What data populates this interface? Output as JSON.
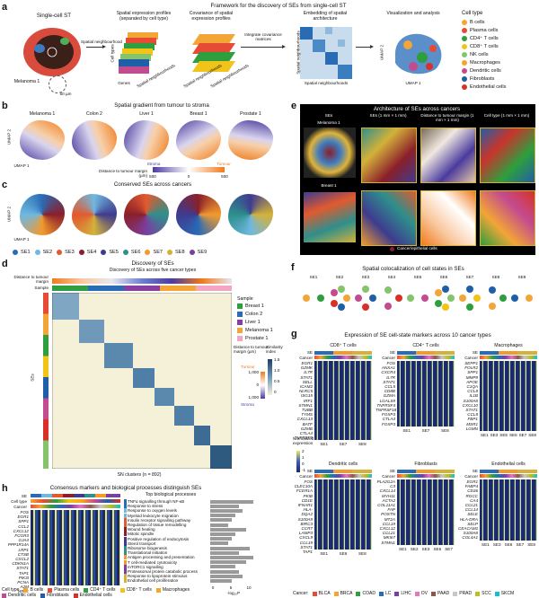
{
  "panel_labels": [
    "a",
    "b",
    "c",
    "d",
    "e",
    "f",
    "g",
    "h"
  ],
  "a": {
    "title": "Framework for the discovery of SEs from single-cell ST",
    "step1_title": "Single-cell ST",
    "sample_label": "Melanoma 1",
    "scale_label": "50 µm",
    "neigh_label": "Spatial neighbourhood",
    "step2_title": "Spatial expression profiles (separated by cell type)",
    "step2_axis_y": "Cell types",
    "step2_axis_x": "Genes",
    "step2_axis_z": "Spatial neighbourhoods",
    "step3_title": "Covariance of spatial expression profiles",
    "step3_axis": "Spatial neighbourhoods",
    "step3_axis_z": "Spatial neighbourhoods",
    "arrow_text": "Integrate covariance matrices",
    "step4_title": "Embedding of spatial architecture",
    "step4_axis_x": "Spatial neighbourhoods",
    "step4_axis_y": "Spatial neighbourhoods",
    "step5_title": "Visualization and analysis",
    "umap1": "UMAP 1",
    "umap2": "UMAP 2",
    "legend_title": "Cell type",
    "legend": [
      {
        "label": "B cells",
        "color": "#f3a536"
      },
      {
        "label": "Plasma cells",
        "color": "#e64b35"
      },
      {
        "label": "CD4⁺ T cells",
        "color": "#2e9e3e"
      },
      {
        "label": "CD8⁺ T cells",
        "color": "#f0c419"
      },
      {
        "label": "NK cells",
        "color": "#85c46c"
      },
      {
        "label": "Macrophages",
        "color": "#f5a623"
      },
      {
        "label": "Dendritic cells",
        "color": "#c34b8f"
      },
      {
        "label": "Fibroblasts",
        "color": "#1f5fa8"
      },
      {
        "label": "Endothelial cells",
        "color": "#d6322a"
      }
    ]
  },
  "b": {
    "title": "Spatial gradient from tumour to stroma",
    "samples": [
      "Melanoma 1",
      "Colon 2",
      "Liver 1",
      "Breast 1",
      "Prostate 1"
    ],
    "umap1": "UMAP 1",
    "umap2": "UMAP 2",
    "cb_label": "Distance to tumour margin (µm)",
    "cb_left": "Stroma",
    "cb_right": "Tumour",
    "cb_ticks": [
      "500",
      "0",
      "500"
    ]
  },
  "c": {
    "title": "Conserved SEs across cancers",
    "umap1": "UMAP 1",
    "umap2": "UMAP 2",
    "se_legend": [
      {
        "label": "SE1",
        "color": "#2a6bb5"
      },
      {
        "label": "SE2",
        "color": "#6fb8e0"
      },
      {
        "label": "SE3",
        "color": "#e25a2e"
      },
      {
        "label": "SE4",
        "color": "#8a1f2a"
      },
      {
        "label": "SE5",
        "color": "#3e3b8f"
      },
      {
        "label": "SE6",
        "color": "#2e8f8c"
      },
      {
        "label": "SE7",
        "color": "#f29a2e"
      },
      {
        "label": "SE8",
        "color": "#d4b13a"
      },
      {
        "label": "SE9",
        "color": "#7a3fa0"
      }
    ]
  },
  "d": {
    "title": "Discovery of SEs across five cancer types",
    "row1": "Distance to tumour margin",
    "row2": "Sample",
    "sample_legend_title": "Sample",
    "samples": [
      {
        "label": "Breast 1",
        "color": "#2e9e3e"
      },
      {
        "label": "Colon 2",
        "color": "#2a6bb5"
      },
      {
        "label": "Liver 1",
        "color": "#8a3fa0"
      },
      {
        "label": "Melanoma 1",
        "color": "#f3a536"
      },
      {
        "label": "Prostate 1",
        "color": "#f2a6c0"
      }
    ],
    "dist_legend": "Distance to tumour margin (µm)",
    "dist_ticks": [
      "1,000",
      "0",
      "1,000"
    ],
    "dist_top": "Tumour",
    "dist_bottom": "Stroma",
    "sim_legend": "Similarity index",
    "sim_ticks": [
      "1.5",
      "1.0",
      "0.5",
      "0"
    ],
    "ylabel": "SEs",
    "xlabel": "SN clusters (n = 892)"
  },
  "e": {
    "title": "Architecture of SEs across cancers",
    "col1": "SEs",
    "col2": "SEs (1 mm × 1 mm)",
    "col3": "Distance to tumour margin (1 mm × 1 mm)",
    "col4": "Cell type (1 mm × 1 mm)",
    "row1": "Melanoma 1",
    "row2": "Breast 1",
    "caption": "Cancer/epithelial cells"
  },
  "f": {
    "title": "Spatial colocalization of cell states in SEs",
    "se_labels": [
      "SE1",
      "SE2",
      "SE3",
      "SE4",
      "SE5",
      "SE6",
      "SE7",
      "SE8",
      "SE9"
    ]
  },
  "g": {
    "title": "Expression of SE cell-state markers across 10 cancer types",
    "panels": [
      {
        "title": "CD8⁺ T cells",
        "genes": [
          "EGR1",
          "GZMK",
          "IL7R",
          "STAT1",
          "SELL",
          "ICAM2",
          "NLRC5",
          "ISG15",
          "IRF1",
          "STMN1",
          "TUBB",
          "TYMS",
          "CXCL13",
          "BATF",
          "GZMB",
          "CTLA4",
          "TNFRSF9"
        ],
        "se": [
          "SE1",
          "SE7",
          "SE8"
        ]
      },
      {
        "title": "CD4⁺ T cells",
        "genes": [
          "FOS",
          "ANXA1",
          "CXCR4",
          "IL7R",
          "STAT1",
          "CCL5",
          "CD8B",
          "GZMA",
          "LGALS9",
          "TNFRSF4",
          "TNFRSF18",
          "FOXP3",
          "CTLA4",
          "FOXP3"
        ],
        "se": [
          "SE1",
          "SE7",
          "SE8"
        ]
      },
      {
        "title": "Macrophages",
        "genes": [
          "SEPP1",
          "FOLR2",
          "SPP1",
          "MMP9",
          "APOE",
          "C1QA",
          "CCL8",
          "IL1B",
          "S100A8",
          "CXCL10",
          "STAT1",
          "CCL8",
          "FBP1",
          "MSR1",
          "LGMN"
        ],
        "se": [
          "SE1",
          "SE3",
          "SE5",
          "SE6",
          "SE7",
          "SE8"
        ]
      },
      {
        "title": "Dendritic cells",
        "genes": [
          "FOS",
          "CLEC10A",
          "FCER1A",
          "PKIB",
          "CD1E",
          "IFNAR1",
          "HLA-DQA2",
          "S100A9",
          "BIRC3",
          "CCR7",
          "LAMP3",
          "CXCL9",
          "CCL19",
          "STAT1",
          "TAP1"
        ],
        "se": [
          "SE1",
          "SE6",
          "SE8"
        ]
      },
      {
        "title": "Fibroblasts",
        "genes": [
          "PLA2G2A",
          "C3",
          "CXCL14",
          "MYH11",
          "ACTA2",
          "COL11A1",
          "FAP",
          "POSTN",
          "MT2A",
          "CCL19",
          "CXCL12",
          "CCL21",
          "MKI67",
          "STMN1"
        ],
        "se": [
          "SE1",
          "SE2",
          "SE3",
          "SE6",
          "SE7"
        ]
      },
      {
        "title": "Endothelial cells",
        "genes": [
          "EGR1",
          "FABP4",
          "CD36",
          "RGCC",
          "CA4",
          "CCL21",
          "CCL14",
          "SELE",
          "HLA-DRA",
          "SELP",
          "CEACAM1",
          "S100A8",
          "COL4A1"
        ],
        "se": [
          "SE1",
          "SE3",
          "SE6",
          "SE7",
          "SE8"
        ]
      }
    ],
    "cb_title": "Normalized expression",
    "cb_ticks": [
      "2",
      "1",
      "0",
      "-1"
    ],
    "cancer_label": "Cancer",
    "se_label": "SE",
    "cancers": [
      {
        "label": "BLCA",
        "color": "#e64b35"
      },
      {
        "label": "BRCA",
        "color": "#f3a536"
      },
      {
        "label": "COAD",
        "color": "#2e9e3e"
      },
      {
        "label": "LC",
        "color": "#2a6bb5"
      },
      {
        "label": "LIHC",
        "color": "#7a3fa0"
      },
      {
        "label": "OV",
        "color": "#e377c2"
      },
      {
        "label": "PAAD",
        "color": "#8c564b"
      },
      {
        "label": "PRAD",
        "color": "#c7c7c7"
      },
      {
        "label": "SCC",
        "color": "#bcbd22"
      },
      {
        "label": "SKCM",
        "color": "#17becf"
      }
    ]
  },
  "h": {
    "title": "Consensus markers and biological processes distinguish SEs",
    "row_se": "SE",
    "row_celltype": "Cell type",
    "row_cancer": "Cancer",
    "genes": [
      "FOS",
      "EGR1",
      "SPP1",
      "CCL2",
      "CXCL12",
      "FCGR3",
      "GJA4",
      "PPP1R14A",
      "LRP1",
      "CTSB",
      "CXCL2",
      "CDKN1A",
      "STAT1",
      "TAP1",
      "PIK3I",
      "PCNA",
      "A2M",
      "NRP1"
    ],
    "process_title": "Top biological processes",
    "processes": [
      {
        "label": "TNFα signalling through NF-κB",
        "value": 12
      },
      {
        "label": "Response to stress",
        "value": 8
      },
      {
        "label": "Response to oxygen levels",
        "value": 9
      },
      {
        "label": "Myeloid leukocyte migration",
        "value": 7
      },
      {
        "label": "Insulin receptor signalling pathway",
        "value": 6
      },
      {
        "label": "Regulation of tissue remodelling",
        "value": 5
      },
      {
        "label": "Wound healing",
        "value": 10
      },
      {
        "label": "Mitotic spindle",
        "value": 7
      },
      {
        "label": "Positive regulation of endocytosis",
        "value": 6
      },
      {
        "label": "Sterol transport",
        "value": 5
      },
      {
        "label": "Ribosome biogenesis",
        "value": 11
      },
      {
        "label": "Translational initiation",
        "value": 8
      },
      {
        "label": "Antigen processing and presentation",
        "value": 12
      },
      {
        "label": "T cell-mediated cytotoxicity",
        "value": 10
      },
      {
        "label": "mTORC1 signalling",
        "value": 7
      },
      {
        "label": "Proteasomal protein catabolic process",
        "value": 8
      },
      {
        "label": "Response to lipoprotein stimulus",
        "value": 9
      },
      {
        "label": "Endothelial cell proliferation",
        "value": 6
      }
    ],
    "axis_label": "-log₁₀P",
    "axis_ticks": [
      "0",
      "5",
      "10"
    ],
    "celltype_legend_title": "Cell type",
    "celltypes": [
      {
        "label": "B cells",
        "color": "#f3a536"
      },
      {
        "label": "Plasma cells",
        "color": "#e64b35"
      },
      {
        "label": "CD4⁺ T cells",
        "color": "#2e9e3e"
      },
      {
        "label": "CD8⁺ T cells",
        "color": "#f0c419"
      },
      {
        "label": "Macrophages",
        "color": "#f5a623"
      },
      {
        "label": "Dendritic cells",
        "color": "#c34b8f"
      },
      {
        "label": "Fibroblasts",
        "color": "#1f5fa8"
      },
      {
        "label": "Endothelial cells",
        "color": "#d6322a"
      }
    ],
    "cancer_legend_title": "Cancer:"
  }
}
